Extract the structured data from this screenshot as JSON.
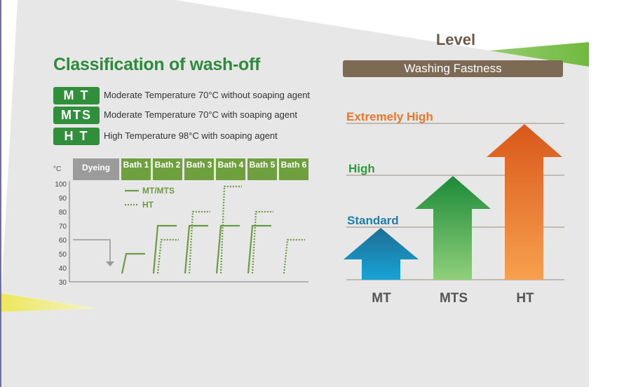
{
  "left": {
    "title": "Classification of wash-off",
    "classes": [
      {
        "code": "M T",
        "desc": "Moderate Temperature 70°C without soaping agent"
      },
      {
        "code": "MTS",
        "desc": "Moderate Temperature 70°C with soaping agent"
      },
      {
        "code": "H T",
        "desc": "High Temperature 98°C with soaping agent"
      }
    ]
  },
  "process_chart": {
    "unit": "°C",
    "headers": [
      "Dyeing",
      "Bath 1",
      "Bath 2",
      "Bath 3",
      "Bath 4",
      "Bath 5",
      "Bath 6"
    ],
    "legend": [
      "MT/MTS",
      "HT"
    ],
    "yticks": [
      30,
      40,
      50,
      60,
      70,
      80,
      90,
      100
    ],
    "ylim": [
      30,
      100
    ],
    "dyeing_temp": 60,
    "mt_mts": [
      50,
      70,
      70,
      70,
      70,
      null
    ],
    "ht": [
      null,
      60,
      80,
      98,
      80,
      60
    ]
  },
  "right": {
    "heading": "Level",
    "bar_label": "Washing Fastness",
    "levels": [
      {
        "label": "Extremely High",
        "color": "#e8762b"
      },
      {
        "label": "High",
        "color": "#2f9a3e"
      },
      {
        "label": "Standard",
        "color": "#1f7ea6"
      }
    ],
    "categories": [
      "MT",
      "MTS",
      "HT"
    ]
  },
  "colors": {
    "green": "#2e8b3a",
    "chart_line": "#6f9a45",
    "brown": "#7d6a55"
  }
}
